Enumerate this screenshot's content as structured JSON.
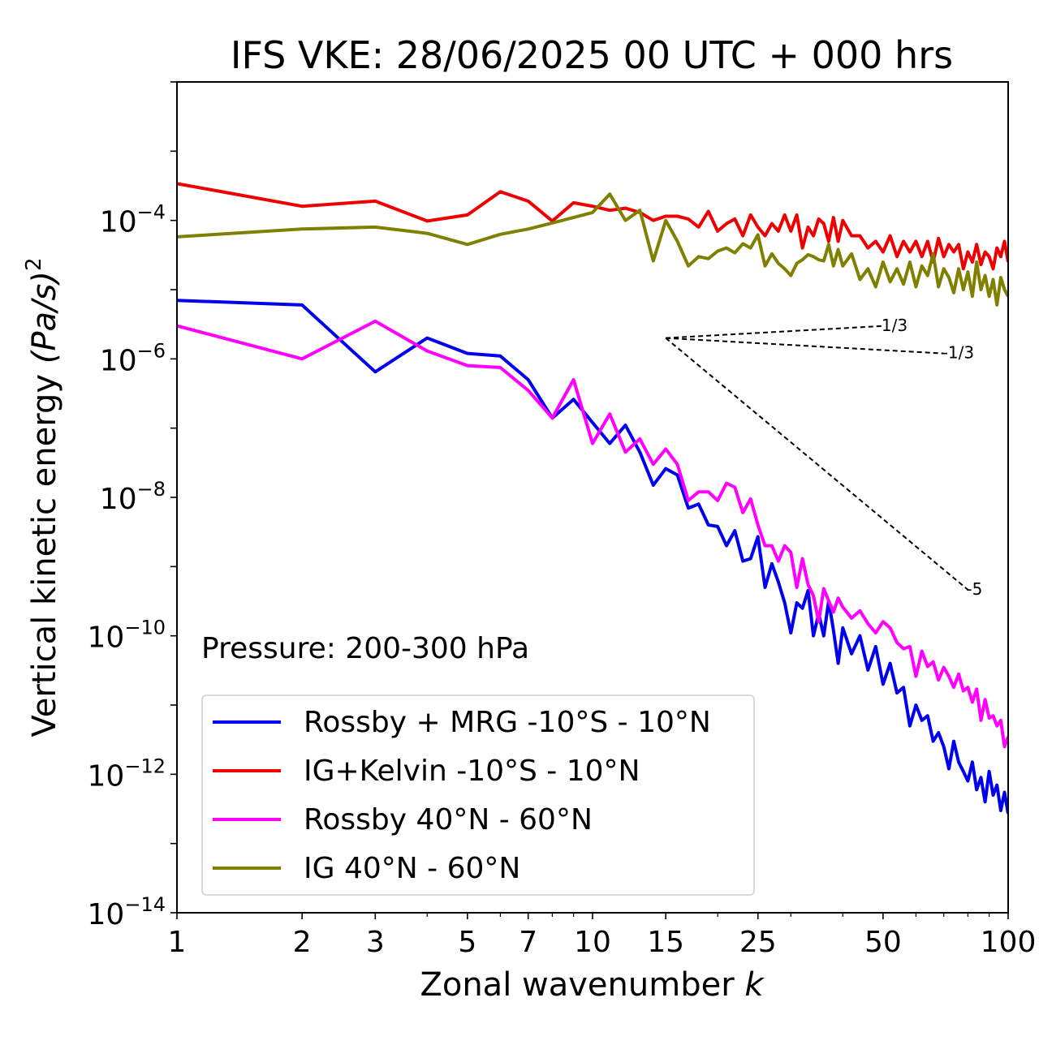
{
  "chart_data": {
    "type": "line",
    "title": "IFS VKE: 28/06/2025 00 UTC + 000 hrs",
    "xlabel_text": "Zonal wavenumber ",
    "xlabel_var": "k",
    "ylabel_text": "Vertical kinetic energy ",
    "ylabel_var": "(Pa/s)",
    "ylabel_exp": "2",
    "x_scale": "log",
    "y_scale": "log",
    "xlim": [
      1,
      100
    ],
    "ylim": [
      1e-14,
      0.01
    ],
    "x_ticks": [
      1,
      2,
      3,
      5,
      7,
      10,
      15,
      25,
      50,
      100
    ],
    "x_tick_labels": [
      "1",
      "2",
      "3",
      "5",
      "7",
      "10",
      "15",
      "25",
      "50",
      "100"
    ],
    "y_ticks": [
      {
        "value": 0.0001,
        "base": "10",
        "exp": "−4"
      },
      {
        "value": 1e-06,
        "base": "10",
        "exp": "−6"
      },
      {
        "value": 1e-08,
        "base": "10",
        "exp": "−8"
      },
      {
        "value": 1e-10,
        "base": "10",
        "exp": "−10"
      },
      {
        "value": 1e-12,
        "base": "10",
        "exp": "−12"
      },
      {
        "value": 1e-14,
        "base": "10",
        "exp": "−14"
      }
    ],
    "annotation": "Pressure: 200-300 hPa",
    "legend_position": "lower-left",
    "series": [
      {
        "name": "Rossby + MRG -10°S - 10°N",
        "color": "#0000ee",
        "x": [
          1,
          2,
          3,
          4,
          5,
          6,
          7,
          8,
          9,
          10,
          11,
          12,
          13,
          14,
          15,
          16,
          17,
          18,
          19,
          20,
          21,
          22,
          23,
          24,
          25,
          26,
          27,
          28,
          29,
          30,
          31,
          32,
          33,
          34,
          35,
          36,
          37,
          38,
          39,
          40,
          42,
          44,
          46,
          48,
          50,
          52,
          54,
          56,
          58,
          60,
          62,
          64,
          66,
          68,
          70,
          72,
          74,
          76,
          78,
          80,
          82,
          84,
          86,
          88,
          90,
          92,
          94,
          96,
          98,
          100
        ],
        "y": [
          7e-06,
          6e-06,
          6.5e-07,
          2e-06,
          1.2e-06,
          1.1e-06,
          5e-07,
          1.4e-07,
          2.6e-07,
          1.2e-07,
          6e-08,
          1.1e-07,
          4.5e-08,
          1.5e-08,
          2.6e-08,
          2.1e-08,
          7e-09,
          8e-09,
          4e-09,
          3.8e-09,
          2e-09,
          3.3e-09,
          1.2e-09,
          1.3e-09,
          2.7e-09,
          5e-10,
          1.1e-09,
          6e-10,
          3e-10,
          1.1e-10,
          3e-10,
          2.5e-10,
          4.5e-10,
          1e-10,
          2.1e-10,
          1e-10,
          3.2e-10,
          1.2e-10,
          4e-11,
          1.3e-10,
          5.5e-11,
          1e-10,
          3.2e-11,
          7e-11,
          2e-11,
          4e-11,
          1.5e-11,
          1.8e-11,
          5e-12,
          1e-11,
          6e-12,
          7e-12,
          3e-12,
          4e-12,
          2.5e-12,
          1.2e-12,
          3e-12,
          1.5e-12,
          1.1e-12,
          8e-13,
          1.5e-12,
          6e-13,
          9e-13,
          4e-13,
          1.1e-12,
          5e-13,
          7e-13,
          3e-13,
          5.5e-13,
          2.7e-13
        ]
      },
      {
        "name": "IG+Kelvin -10°S - 10°N",
        "color": "#ee0000",
        "x": [
          1,
          2,
          3,
          4,
          5,
          6,
          7,
          8,
          9,
          10,
          11,
          12,
          13,
          14,
          15,
          16,
          17,
          18,
          19,
          20,
          21,
          22,
          23,
          24,
          25,
          26,
          27,
          28,
          29,
          30,
          31,
          32,
          33,
          34,
          35,
          36,
          37,
          38,
          39,
          40,
          42,
          44,
          46,
          48,
          50,
          52,
          54,
          56,
          58,
          60,
          62,
          64,
          66,
          68,
          70,
          72,
          74,
          76,
          78,
          80,
          82,
          84,
          86,
          88,
          90,
          92,
          94,
          96,
          98,
          100
        ],
        "y": [
          0.00034,
          0.00016,
          0.00019,
          9.8e-05,
          0.00012,
          0.00026,
          0.00019,
          9.8e-05,
          0.00018,
          0.00016,
          0.00014,
          0.00015,
          0.00013,
          0.0001,
          0.000115,
          0.000115,
          0.000105,
          8e-05,
          0.000135,
          7e-05,
          9e-05,
          0.000105,
          6e-05,
          0.00012,
          8e-05,
          6e-05,
          9e-05,
          7e-05,
          0.00012,
          7e-05,
          0.00012,
          4e-05,
          8e-05,
          6e-05,
          0.000105,
          9e-05,
          5e-05,
          0.00011,
          5e-05,
          0.0001,
          6e-05,
          6e-05,
          4e-05,
          5e-05,
          3.5e-05,
          6e-05,
          3e-05,
          5e-05,
          3.5e-05,
          5e-05,
          3e-05,
          5e-05,
          2.5e-05,
          5.5e-05,
          3e-05,
          4.5e-05,
          3.5e-05,
          4.5e-05,
          2e-05,
          3.5e-05,
          2.5e-05,
          4.5e-05,
          2.3e-05,
          3.5e-05,
          3e-05,
          2e-05,
          4e-05,
          3e-05,
          5e-05,
          2.5e-05
        ]
      },
      {
        "name": "Rossby 40°N - 60°N",
        "color": "#ff00ff",
        "x": [
          1,
          2,
          3,
          4,
          5,
          6,
          7,
          8,
          9,
          10,
          11,
          12,
          13,
          14,
          15,
          16,
          17,
          18,
          19,
          20,
          21,
          22,
          23,
          24,
          25,
          26,
          27,
          28,
          29,
          30,
          31,
          32,
          33,
          34,
          35,
          36,
          37,
          38,
          39,
          40,
          42,
          44,
          46,
          48,
          50,
          52,
          54,
          56,
          58,
          60,
          62,
          64,
          66,
          68,
          70,
          72,
          74,
          76,
          78,
          80,
          82,
          84,
          86,
          88,
          90,
          92,
          94,
          96,
          98,
          100
        ],
        "y": [
          3e-06,
          1e-06,
          3.5e-06,
          1.3e-06,
          8e-07,
          7.5e-07,
          3.5e-07,
          1.4e-07,
          5e-07,
          6e-08,
          1.6e-07,
          4.5e-08,
          7e-08,
          3e-08,
          5e-08,
          3e-08,
          9e-09,
          1.2e-08,
          1.2e-08,
          9e-09,
          1.6e-08,
          1.4e-08,
          6e-09,
          9.5e-09,
          4e-09,
          2e-09,
          2e-09,
          1.2e-09,
          2e-09,
          1.6e-09,
          5e-10,
          1.3e-09,
          5.5e-10,
          3.8e-10,
          1.6e-10,
          4.8e-10,
          3.2e-10,
          2.2e-10,
          3.5e-10,
          2.6e-10,
          1.8e-10,
          2.3e-10,
          1.5e-10,
          1.1e-10,
          1.6e-10,
          1.3e-10,
          8e-11,
          6.5e-11,
          7e-11,
          2.6e-11,
          6e-11,
          3.6e-11,
          4.2e-11,
          2.3e-11,
          3.5e-11,
          2.6e-11,
          1.8e-11,
          2.8e-11,
          1.6e-11,
          1.8e-11,
          1.1e-11,
          1.7e-11,
          6e-12,
          1.2e-11,
          6.5e-12,
          7e-12,
          5e-12,
          6e-12,
          2.5e-12,
          3.5e-12
        ]
      },
      {
        "name": "IG 40°N - 60°N",
        "color": "#808000",
        "x": [
          1,
          2,
          3,
          4,
          5,
          6,
          7,
          8,
          9,
          10,
          11,
          12,
          13,
          14,
          15,
          16,
          17,
          18,
          19,
          20,
          21,
          22,
          23,
          24,
          25,
          26,
          27,
          28,
          29,
          30,
          31,
          32,
          33,
          34,
          35,
          36,
          37,
          38,
          39,
          40,
          42,
          44,
          46,
          48,
          50,
          52,
          54,
          56,
          58,
          60,
          62,
          64,
          66,
          68,
          70,
          72,
          74,
          76,
          78,
          80,
          82,
          84,
          86,
          88,
          90,
          92,
          94,
          96,
          98,
          100
        ],
        "y": [
          5.8e-05,
          7.5e-05,
          8e-05,
          6.5e-05,
          4.5e-05,
          6.3e-05,
          7.5e-05,
          9.2e-05,
          0.00011,
          0.00013,
          0.00024,
          0.0001,
          0.00014,
          2.6e-05,
          0.0001,
          5e-05,
          2.2e-05,
          3e-05,
          2.8e-05,
          3.6e-05,
          4e-05,
          3.4e-05,
          4.6e-05,
          4e-05,
          6.2e-05,
          2.2e-05,
          3.3e-05,
          2.4e-05,
          2e-05,
          1.6e-05,
          2.4e-05,
          2.7e-05,
          3.2e-05,
          3e-05,
          2.7e-05,
          2.6e-05,
          4.5e-05,
          2.2e-05,
          3.8e-05,
          2.2e-05,
          3.3e-05,
          1.4e-05,
          2e-05,
          1.1e-05,
          2.5e-05,
          1.3e-05,
          2e-05,
          1.2e-05,
          2.5e-05,
          1.1e-05,
          2.2e-05,
          1.6e-05,
          3.3e-05,
          1.1e-05,
          2e-05,
          1.5e-05,
          9e-06,
          2e-05,
          1e-05,
          1.8e-05,
          8e-06,
          2.5e-05,
          1e-05,
          1.6e-05,
          8e-06,
          1.4e-05,
          6e-06,
          1.5e-05,
          1e-05,
          8e-06
        ]
      }
    ],
    "reference_lines": [
      {
        "label": "1/3",
        "slope": 0.3333,
        "x_start": 15,
        "x_end": 50,
        "y_start": 2e-06
      },
      {
        "label": "-1/3",
        "slope": -0.3333,
        "x_start": 15,
        "x_end": 70,
        "y_start": 2e-06
      },
      {
        "label": "-5",
        "slope": -5,
        "x_start": 15,
        "x_end": 80,
        "y_start": 2e-06
      }
    ]
  }
}
